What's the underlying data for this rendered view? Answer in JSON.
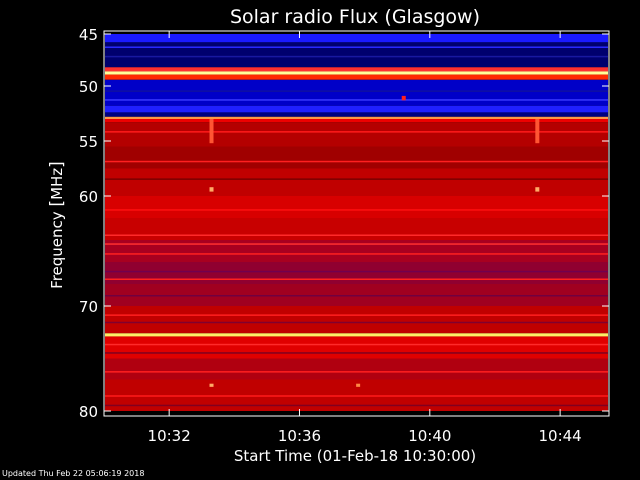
{
  "chart_data": {
    "type": "heatmap",
    "title": "Solar radio Flux (Glasgow)",
    "xlabel": "Start Time (01-Feb-18 10:30:00)",
    "ylabel_text": "Frequency ",
    "ylabel_unit": "MHz",
    "x_unit": "minutes after 10:30:00",
    "xlim": [
      0,
      15.5
    ],
    "ylim": [
      80,
      45
    ],
    "y_ticks": [
      45,
      50,
      55,
      60,
      70,
      80
    ],
    "y_tick_labels": [
      "45",
      "50",
      "55",
      "60",
      "70",
      "80"
    ],
    "x_ticks": [
      2,
      6,
      10,
      14
    ],
    "x_tick_labels": [
      "10:32",
      "10:36",
      "10:40",
      "10:44"
    ],
    "colors": {
      "background": "#000000",
      "axes": "#ffffff",
      "low": "#0000cc",
      "mid": "#ff0000",
      "high": "#ffff66"
    },
    "bands": [
      {
        "f0": 45.0,
        "f1": 45.8,
        "color": "#1a1aff"
      },
      {
        "f0": 45.8,
        "f1": 48.2,
        "color": "#00006e"
      },
      {
        "f0": 48.2,
        "f1": 48.6,
        "color": "#ff3030"
      },
      {
        "f0": 48.6,
        "f1": 48.9,
        "color": "#ffff99"
      },
      {
        "f0": 48.9,
        "f1": 49.4,
        "color": "#ff2a00"
      },
      {
        "f0": 49.4,
        "f1": 51.8,
        "color": "#0000c8"
      },
      {
        "f0": 51.8,
        "f1": 52.4,
        "color": "#2020ff"
      },
      {
        "f0": 52.4,
        "f1": 52.8,
        "color": "#000080"
      },
      {
        "f0": 52.8,
        "f1": 53.0,
        "color": "#ff9944"
      },
      {
        "f0": 53.0,
        "f1": 53.3,
        "color": "#ee0000"
      },
      {
        "f0": 53.3,
        "f1": 55.5,
        "color": "#b40000"
      },
      {
        "f0": 55.5,
        "f1": 57.5,
        "color": "#a00000"
      },
      {
        "f0": 57.5,
        "f1": 60.0,
        "color": "#c00000"
      },
      {
        "f0": 60.0,
        "f1": 62.0,
        "color": "#d80000"
      },
      {
        "f0": 62.0,
        "f1": 64.0,
        "color": "#c80000"
      },
      {
        "f0": 64.0,
        "f1": 66.0,
        "color": "#a80020"
      },
      {
        "f0": 66.0,
        "f1": 68.0,
        "color": "#900030"
      },
      {
        "f0": 68.0,
        "f1": 70.0,
        "color": "#a00020"
      },
      {
        "f0": 70.0,
        "f1": 72.0,
        "color": "#c00000"
      },
      {
        "f0": 72.0,
        "f1": 72.6,
        "color": "#c00000"
      },
      {
        "f0": 72.6,
        "f1": 72.9,
        "color": "#ffee66"
      },
      {
        "f0": 72.9,
        "f1": 75.0,
        "color": "#e00000"
      },
      {
        "f0": 75.0,
        "f1": 77.0,
        "color": "#b00010"
      },
      {
        "f0": 77.0,
        "f1": 80.0,
        "color": "#c00000"
      }
    ],
    "lines": [
      {
        "f": 46.2,
        "color": "#2a2aff"
      },
      {
        "f": 47.1,
        "color": "#1818a0"
      },
      {
        "f": 50.4,
        "color": "#1010a0"
      },
      {
        "f": 51.2,
        "color": "#3a3aff"
      },
      {
        "f": 54.1,
        "color": "#ff1a1a"
      },
      {
        "f": 56.8,
        "color": "#ff2020"
      },
      {
        "f": 58.4,
        "color": "#7a0000"
      },
      {
        "f": 61.2,
        "color": "#ff1010"
      },
      {
        "f": 63.5,
        "color": "#ff2a2a"
      },
      {
        "f": 64.3,
        "color": "#ff3030"
      },
      {
        "f": 65.2,
        "color": "#ff2020"
      },
      {
        "f": 66.8,
        "color": "#700050"
      },
      {
        "f": 67.5,
        "color": "#ff2020"
      },
      {
        "f": 69.0,
        "color": "#700040"
      },
      {
        "f": 70.8,
        "color": "#ff2020"
      },
      {
        "f": 71.5,
        "color": "#800030"
      },
      {
        "f": 73.6,
        "color": "#ff2a2a"
      },
      {
        "f": 74.4,
        "color": "#800020"
      },
      {
        "f": 76.2,
        "color": "#ff2020"
      },
      {
        "f": 78.5,
        "color": "#ff1a1a"
      },
      {
        "f": 79.4,
        "color": "#800020"
      }
    ],
    "hot_spots": [
      {
        "t": 3.3,
        "f0": 53.0,
        "f1": 55.2,
        "color": "#ff5533"
      },
      {
        "t": 3.3,
        "f0": 59.2,
        "f1": 59.6,
        "color": "#ffaa66"
      },
      {
        "t": 13.3,
        "f0": 53.0,
        "f1": 55.2,
        "color": "#ff5533"
      },
      {
        "t": 13.3,
        "f0": 59.2,
        "f1": 59.6,
        "color": "#ffaa66"
      },
      {
        "t": 9.2,
        "f0": 50.9,
        "f1": 51.3,
        "color": "#ff2020"
      },
      {
        "t": 3.3,
        "f0": 77.4,
        "f1": 77.7,
        "color": "#ffaa66"
      },
      {
        "t": 7.8,
        "f0": 77.4,
        "f1": 77.7,
        "color": "#ff8844"
      }
    ]
  },
  "footer": {
    "updated": "Updated Thu Feb 22 05:06:19 2018"
  }
}
